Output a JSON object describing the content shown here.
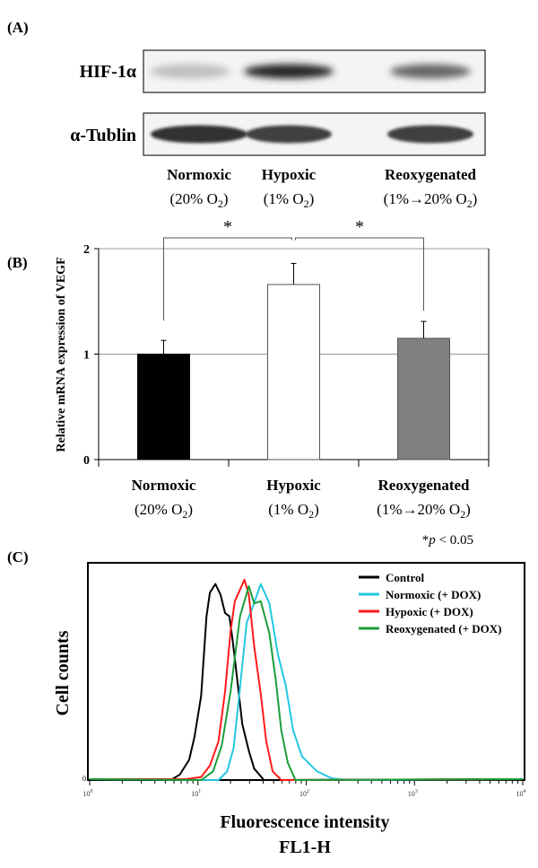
{
  "chart_data": [
    {
      "panel_label": "(A)",
      "type": "western-blot",
      "rows": [
        {
          "label": "HIF-1α",
          "band_intensity": [
            0.25,
            0.85,
            0.6
          ]
        },
        {
          "label": "α-Tublin",
          "band_intensity": [
            0.8,
            0.75,
            0.75
          ]
        }
      ],
      "lanes": [
        {
          "name": "Normoxic",
          "pre": "(20% O",
          "sub": "2",
          "post": ")"
        },
        {
          "name": "Hypoxic",
          "pre": "(1% O",
          "sub": "2",
          "post": ")"
        },
        {
          "name": "Reoxygenated",
          "pre": "(1%→20% O",
          "sub": "2",
          "post": ")"
        }
      ]
    },
    {
      "panel_label": "(B)",
      "type": "bar",
      "ylabel": "Relative mRNA expression of VEGF",
      "ylim": [
        0,
        2
      ],
      "yticks": [
        "0",
        "1",
        "2"
      ],
      "grid": true,
      "categories": [
        {
          "name": "Normoxic",
          "pre": "(20% O",
          "sub": "2",
          "post": ")"
        },
        {
          "name": "Hypoxic",
          "pre": "(1% O",
          "sub": "2",
          "post": ")"
        },
        {
          "name": "Reoxygenated",
          "pre": "(1%→20% O",
          "sub": "2",
          "post": ")"
        }
      ],
      "values": [
        1.0,
        1.66,
        1.15
      ],
      "errors": [
        0.13,
        0.2,
        0.16
      ],
      "colors": [
        "#000000",
        "#ffffff",
        "#808080"
      ],
      "significance": [
        {
          "pair": [
            0,
            1
          ],
          "mark": "*"
        },
        {
          "pair": [
            1,
            2
          ],
          "mark": "*"
        }
      ],
      "footnote": {
        "star": "*",
        "p": "p",
        "rest": " < 0.05"
      }
    },
    {
      "panel_label": "(C)",
      "type": "line",
      "xscale": "log",
      "xlim": [
        1,
        10000
      ],
      "xticks": [
        {
          "base": "10",
          "exp": "0"
        },
        {
          "base": "10",
          "exp": "1"
        },
        {
          "base": "10",
          "exp": "2"
        },
        {
          "base": "10",
          "exp": "3"
        },
        {
          "base": "10",
          "exp": "4"
        }
      ],
      "ytick": "0",
      "ylabel": "Cell counts",
      "xlabel": "Fluorescence intensity",
      "xlabel2": "FL1-H",
      "legend_position": "top-right",
      "series": [
        {
          "name": "Control",
          "color": "#000000",
          "x": [
            5.6,
            6.8,
            8.3,
            9.3,
            10.7,
            12,
            12.9,
            14.5,
            16.2,
            17.8,
            19.5,
            20.9,
            22.9,
            25.7,
            29.5,
            33.1,
            40.7
          ],
          "y": [
            0,
            0.025,
            0.094,
            0.2,
            0.39,
            0.76,
            0.87,
            0.91,
            0.86,
            0.775,
            0.76,
            0.65,
            0.48,
            0.26,
            0.136,
            0.053,
            0
          ]
        },
        {
          "name": "Normoxic (+ DOX)",
          "color": "#22c8e0",
          "x": [
            15.5,
            18.6,
            21.4,
            24,
            28.2,
            32.4,
            38,
            45.7,
            55,
            64.6,
            75.9,
            91.2,
            126,
            174,
            245
          ],
          "y": [
            0,
            0.04,
            0.15,
            0.39,
            0.73,
            0.81,
            0.91,
            0.82,
            0.58,
            0.44,
            0.23,
            0.11,
            0.04,
            0.007,
            0
          ]
        },
        {
          "name": "Hypoxic (+ DOX)",
          "color": "#ff1a1a",
          "x": [
            7.8,
            10.7,
            12.9,
            15.5,
            17.8,
            20,
            21.9,
            26.9,
            29.5,
            33.1,
            38,
            42.7,
            49,
            58.9
          ],
          "y": [
            0.004,
            0.014,
            0.067,
            0.18,
            0.41,
            0.69,
            0.83,
            0.93,
            0.86,
            0.62,
            0.4,
            0.18,
            0.04,
            0
          ]
        },
        {
          "name": "Reoxygenated (+ DOX)",
          "color": "#1a9e3a",
          "x": [
            10.7,
            13.8,
            16.6,
            20,
            24.5,
            29.5,
            33.1,
            38,
            45.7,
            52.5,
            58.9,
            67.6,
            79.4
          ],
          "y": [
            0,
            0.04,
            0.16,
            0.41,
            0.76,
            0.9,
            0.82,
            0.83,
            0.68,
            0.46,
            0.23,
            0.08,
            0
          ]
        }
      ]
    }
  ]
}
